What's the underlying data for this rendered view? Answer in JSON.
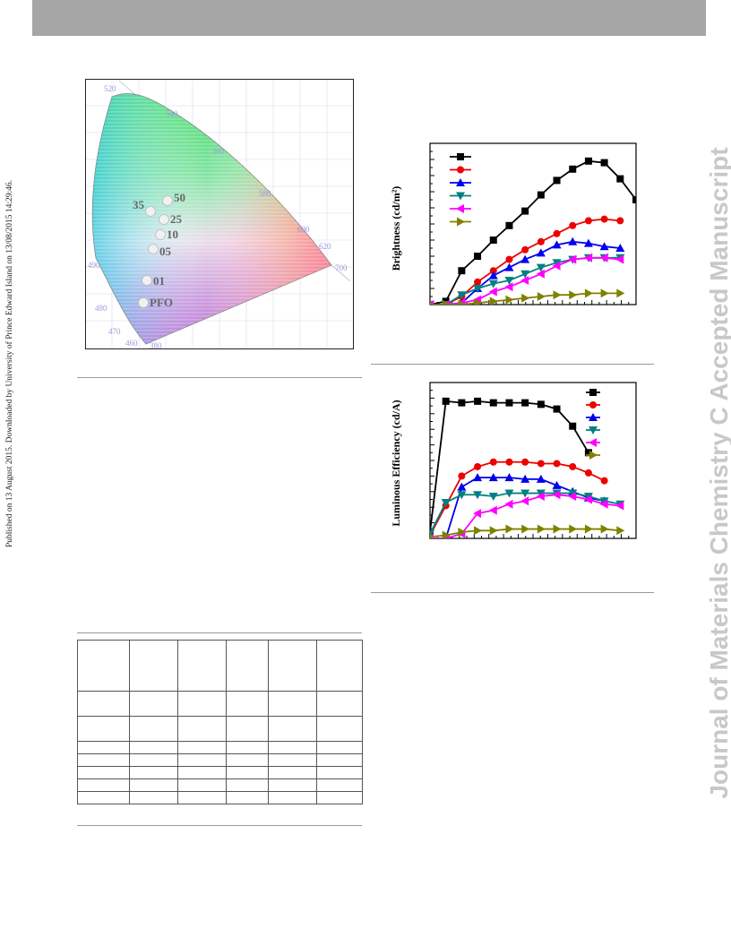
{
  "page": {
    "side_note": "Published on 13 August 2015. Downloaded by University of Prince Edward Island on 13/08/2015 14:29:46.",
    "journal_watermark": "Journal of Materials Chemistry C Accepted Manuscript"
  },
  "cie": {
    "wavelength_labels": [
      "520",
      "540",
      "560",
      "580",
      "600",
      "620",
      "700",
      "490",
      "480",
      "470",
      "460",
      "380"
    ],
    "points": [
      {
        "label": "50",
        "x": 0.265,
        "y": 0.382
      },
      {
        "label": "35",
        "x": 0.236,
        "y": 0.371
      },
      {
        "label": "25",
        "x": 0.258,
        "y": 0.36
      },
      {
        "label": "10",
        "x": 0.256,
        "y": 0.338
      },
      {
        "label": "05",
        "x": 0.244,
        "y": 0.315
      },
      {
        "label": "01",
        "x": 0.232,
        "y": 0.262
      },
      {
        "label": "PFO",
        "x": 0.226,
        "y": 0.218
      }
    ]
  },
  "chart_data": [
    {
      "type": "line",
      "title": "",
      "xlabel": "",
      "ylabel": "Brightness (cd/m²)",
      "x": [
        1,
        2,
        3,
        4,
        5,
        6,
        7,
        8,
        9,
        10,
        11,
        12,
        13,
        14
      ],
      "ylim": [
        0,
        100
      ],
      "series": [
        {
          "color": "#000000",
          "marker": "square",
          "values": [
            0,
            2,
            21,
            30,
            40,
            49,
            58,
            68,
            77,
            84,
            89,
            88,
            78,
            65
          ]
        },
        {
          "color": "#ee0000",
          "marker": "circle",
          "values": [
            0,
            0,
            5,
            14,
            21,
            28,
            34,
            39,
            44,
            49,
            52,
            53,
            52,
            null
          ]
        },
        {
          "color": "#0000ee",
          "marker": "triangle-up",
          "values": [
            0,
            0,
            1,
            10,
            18,
            23,
            28,
            32,
            37,
            39,
            38,
            36,
            35,
            null
          ]
        },
        {
          "color": "#008080",
          "marker": "triangle-down",
          "values": [
            0,
            0,
            6,
            10,
            13,
            15,
            19,
            23,
            26,
            28,
            29,
            29,
            29,
            null
          ]
        },
        {
          "color": "#ff00ff",
          "marker": "triangle-left",
          "values": [
            0,
            0,
            1,
            3,
            8,
            11,
            15,
            19,
            24,
            28,
            29,
            29,
            28,
            null
          ]
        },
        {
          "color": "#808000",
          "marker": "triangle-right",
          "values": [
            0,
            0,
            0,
            1,
            2,
            3,
            4,
            5,
            6,
            6,
            7,
            7,
            7,
            null
          ]
        }
      ]
    },
    {
      "type": "line",
      "title": "",
      "xlabel": "",
      "ylabel": "Luminous Efficiency (cd/A)",
      "x": [
        1,
        2,
        3,
        4,
        5,
        6,
        7,
        8,
        9,
        10,
        11,
        12,
        13,
        14
      ],
      "ylim": [
        0,
        100
      ],
      "series": [
        {
          "color": "#000000",
          "marker": "square",
          "values": [
            4,
            88,
            87,
            88,
            87,
            87,
            87,
            86,
            83,
            72,
            55,
            null,
            null,
            null
          ]
        },
        {
          "color": "#ee0000",
          "marker": "circle",
          "values": [
            2,
            21,
            40,
            46,
            49,
            49,
            49,
            48,
            48,
            46,
            42,
            37,
            null,
            null
          ]
        },
        {
          "color": "#0000ee",
          "marker": "triangle-up",
          "values": [
            0,
            0,
            33,
            39,
            39,
            39,
            38,
            38,
            34,
            30,
            26,
            24,
            null,
            null
          ]
        },
        {
          "color": "#008080",
          "marker": "triangle-down",
          "values": [
            3,
            23,
            28,
            28,
            27,
            29,
            29,
            29,
            29,
            29,
            27,
            24,
            22,
            null
          ]
        },
        {
          "color": "#ff00ff",
          "marker": "triangle-left",
          "values": [
            0,
            0,
            3,
            16,
            18,
            22,
            24,
            27,
            28,
            27,
            25,
            22,
            21,
            null
          ]
        },
        {
          "color": "#808000",
          "marker": "triangle-right",
          "values": [
            1,
            2,
            4,
            5,
            5,
            6,
            6,
            6,
            6,
            6,
            6,
            6,
            5,
            null
          ]
        }
      ]
    }
  ]
}
